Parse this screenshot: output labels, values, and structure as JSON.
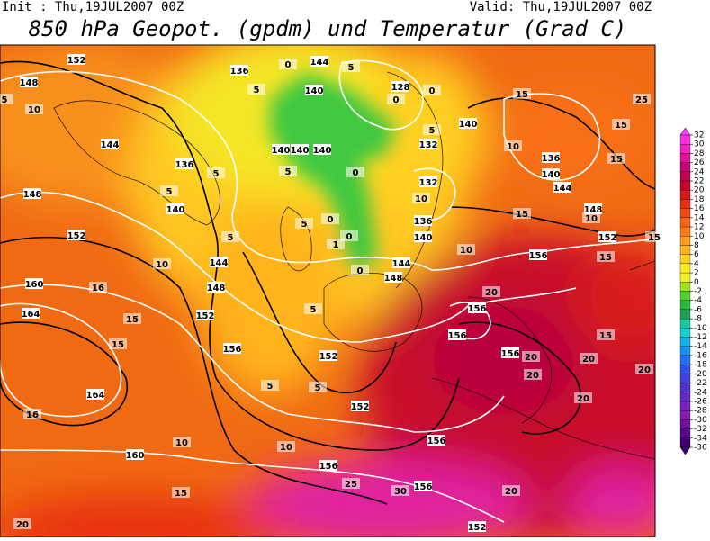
{
  "header": {
    "init": "Init : Thu,19JUL2007 00Z",
    "valid": "Valid: Thu,19JUL2007 00Z",
    "title": "850 hPa Geopot. (gpdm) und Temperatur (Grad C)"
  },
  "map": {
    "geopotential_labels": [
      152,
      148,
      144,
      136,
      140,
      148,
      152,
      160,
      164,
      164,
      160,
      144,
      148,
      152,
      156,
      152,
      152,
      156,
      156,
      156,
      152,
      156,
      156,
      156,
      156,
      152,
      148,
      144,
      140,
      136,
      140,
      132,
      132,
      136,
      140,
      144,
      148,
      128,
      140,
      144,
      136,
      140,
      140,
      140
    ],
    "temperature_labels": [
      10,
      5,
      15,
      10,
      15,
      15,
      5,
      25,
      10,
      15,
      10,
      15,
      15,
      20,
      15,
      20,
      20,
      20,
      20,
      20,
      20,
      25,
      30,
      16,
      15,
      15,
      16,
      10,
      10,
      15,
      20,
      10,
      5,
      5,
      5,
      10,
      5,
      5,
      5,
      5,
      5,
      1,
      0,
      0,
      0,
      0,
      0,
      0,
      0,
      5,
      5
    ]
  },
  "colorbar": {
    "levels": [
      32,
      30,
      28,
      26,
      24,
      22,
      20,
      18,
      16,
      14,
      12,
      10,
      8,
      6,
      4,
      2,
      0,
      -2,
      -4,
      -6,
      -8,
      -10,
      -12,
      -14,
      -16,
      -18,
      -20,
      -22,
      -24,
      -26,
      -28,
      -30,
      -32,
      -34,
      -36
    ],
    "colors": [
      "#ff40ff",
      "#ff2ee0",
      "#f020c0",
      "#e0109a",
      "#c8007a",
      "#c00050",
      "#c8002a",
      "#d81a1a",
      "#e83010",
      "#f04810",
      "#f86414",
      "#fc7c18",
      "#ff9a1c",
      "#ffb41c",
      "#ffd020",
      "#ffec20",
      "#f0f028",
      "#a0e020",
      "#50d030",
      "#28b838",
      "#20a050",
      "#18c8a0",
      "#10d0d0",
      "#10b0e8",
      "#1890f0",
      "#2070f0",
      "#3050e8",
      "#4040e0",
      "#5030d0",
      "#6828c8",
      "#7820c0",
      "#8818b0",
      "#7010a0",
      "#580890",
      "#400070"
    ]
  }
}
